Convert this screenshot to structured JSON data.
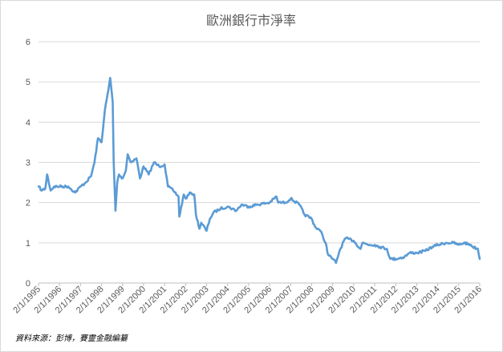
{
  "chart_data": {
    "type": "line",
    "title": "歐洲銀行市淨率",
    "source": "資料來源：彭博，賽靈金融編纂",
    "ylim": [
      0,
      6
    ],
    "y_ticks": [
      "0",
      "1",
      "2",
      "3",
      "4",
      "5",
      "6"
    ],
    "x_tick_labels": [
      "2/1/1995",
      "2/1/1996",
      "2/1/1997",
      "2/1/1998",
      "2/1/1999",
      "2/1/2000",
      "2/1/2001",
      "2/1/2002",
      "2/1/2003",
      "2/1/2004",
      "2/1/2005",
      "2/1/2006",
      "2/1/2007",
      "2/1/2008",
      "2/1/2009",
      "2/1/2010",
      "2/1/2011",
      "2/1/2012",
      "2/1/2013",
      "2/1/2014",
      "2/1/2015",
      "2/1/2016"
    ],
    "grid": true,
    "legend": "none",
    "line_color": "#5b9bd5",
    "series": [
      {
        "x": [
          "1995-01-02",
          "1995-03-01",
          "1995-05-01",
          "1995-06-01",
          "1995-08-01",
          "1995-10-01",
          "1996-01-02",
          "1996-06-01",
          "1996-10-01",
          "1997-01-02",
          "1997-04-01",
          "1997-07-01",
          "1997-09-01",
          "1997-11-01",
          "1998-01-02",
          "1998-03-01",
          "1998-05-01",
          "1998-06-01",
          "1998-07-15",
          "1998-08-01",
          "1998-09-01",
          "1998-10-01",
          "1998-11-01",
          "1999-01-02",
          "1999-03-01",
          "1999-04-01",
          "1999-06-01",
          "1999-09-01",
          "1999-11-01",
          "2000-01-02",
          "2000-04-01",
          "2000-07-01",
          "2000-10-01",
          "2001-01-02",
          "2001-03-01",
          "2001-06-01",
          "2001-09-01",
          "2001-09-15",
          "2001-12-01",
          "2002-01-02",
          "2002-04-01",
          "2002-06-01",
          "2002-07-01",
          "2002-09-01",
          "2002-10-01",
          "2003-01-02",
          "2003-03-01",
          "2003-05-01",
          "2003-09-01",
          "2004-01-02",
          "2004-06-01",
          "2004-09-01",
          "2005-01-02",
          "2005-06-01",
          "2006-01-02",
          "2006-05-01",
          "2006-06-01",
          "2006-10-01",
          "2007-01-02",
          "2007-06-01",
          "2007-09-01",
          "2008-01-02",
          "2008-03-01",
          "2008-06-01",
          "2008-09-01",
          "2008-10-15",
          "2009-01-02",
          "2009-03-01",
          "2009-05-01",
          "2009-08-01",
          "2009-10-01",
          "2010-01-02",
          "2010-05-01",
          "2010-06-01",
          "2010-10-01",
          "2011-01-02",
          "2011-04-01",
          "2011-08-01",
          "2011-10-01",
          "2012-01-02",
          "2012-06-01",
          "2012-09-01",
          "2013-01-02",
          "2013-06-01",
          "2013-10-01",
          "2014-01-02",
          "2014-06-01",
          "2014-10-01",
          "2015-01-02",
          "2015-04-01",
          "2015-08-01",
          "2015-09-01",
          "2015-12-01",
          "2016-01-02"
        ],
        "y": [
          2.4,
          2.3,
          2.35,
          2.7,
          2.3,
          2.4,
          2.4,
          2.4,
          2.25,
          2.4,
          2.5,
          2.65,
          3.0,
          3.6,
          3.5,
          4.3,
          4.8,
          5.1,
          4.5,
          3.0,
          1.8,
          2.5,
          2.7,
          2.6,
          2.8,
          3.2,
          3.0,
          3.1,
          2.6,
          2.9,
          2.7,
          3.0,
          2.9,
          2.95,
          2.4,
          2.3,
          2.15,
          1.65,
          2.2,
          2.1,
          2.25,
          2.2,
          1.7,
          1.35,
          1.5,
          1.3,
          1.6,
          1.75,
          1.85,
          1.9,
          1.8,
          1.95,
          1.9,
          1.95,
          2.0,
          2.15,
          2.0,
          2.0,
          2.1,
          1.95,
          1.7,
          1.6,
          1.4,
          1.3,
          1.0,
          0.7,
          0.6,
          0.5,
          0.8,
          1.1,
          1.1,
          1.05,
          0.85,
          1.0,
          0.95,
          0.95,
          0.9,
          0.85,
          0.6,
          0.6,
          0.65,
          0.75,
          0.75,
          0.8,
          0.9,
          0.95,
          1.0,
          1.0,
          0.95,
          1.0,
          0.95,
          0.9,
          0.85,
          0.6
        ]
      }
    ]
  }
}
